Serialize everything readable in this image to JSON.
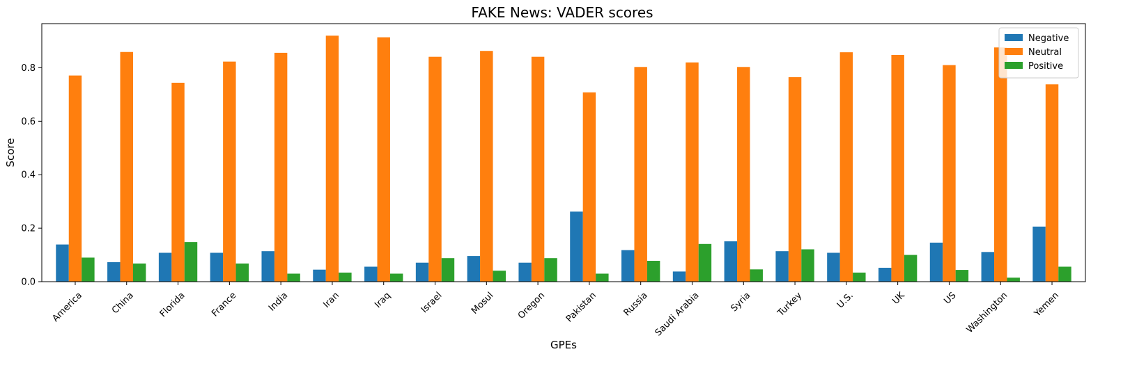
{
  "chart_data": {
    "type": "bar",
    "title": "FAKE News: VADER scores",
    "xlabel": "GPEs",
    "ylabel": "Score",
    "ylim": [
      0,
      0.965
    ],
    "yticks": [
      "0.0",
      "0.2",
      "0.4",
      "0.6",
      "0.8"
    ],
    "legend_position": "top-right",
    "grid": false,
    "categories": [
      "America",
      "China",
      "Florida",
      "France",
      "India",
      "Iran",
      "Iraq",
      "Israel",
      "Mosul",
      "Oregon",
      "Pakistan",
      "Russia",
      "Saudi Arabia",
      "Syria",
      "Turkey",
      "U.S.",
      "UK",
      "US",
      "Washington",
      "Yemen"
    ],
    "series": [
      {
        "name": "Negative",
        "color": "#1f77b4",
        "values": [
          0.139,
          0.073,
          0.108,
          0.108,
          0.114,
          0.045,
          0.056,
          0.071,
          0.096,
          0.071,
          0.262,
          0.118,
          0.038,
          0.151,
          0.114,
          0.108,
          0.052,
          0.146,
          0.111,
          0.206
        ]
      },
      {
        "name": "Neutral",
        "color": "#ff7f0e",
        "values": [
          0.771,
          0.859,
          0.744,
          0.823,
          0.856,
          0.92,
          0.914,
          0.841,
          0.863,
          0.841,
          0.708,
          0.803,
          0.82,
          0.803,
          0.765,
          0.858,
          0.848,
          0.81,
          0.876,
          0.738
        ]
      },
      {
        "name": "Positive",
        "color": "#2ca02c",
        "values": [
          0.09,
          0.068,
          0.148,
          0.068,
          0.03,
          0.034,
          0.03,
          0.088,
          0.041,
          0.088,
          0.03,
          0.078,
          0.141,
          0.046,
          0.121,
          0.034,
          0.1,
          0.044,
          0.015,
          0.056
        ]
      }
    ]
  }
}
